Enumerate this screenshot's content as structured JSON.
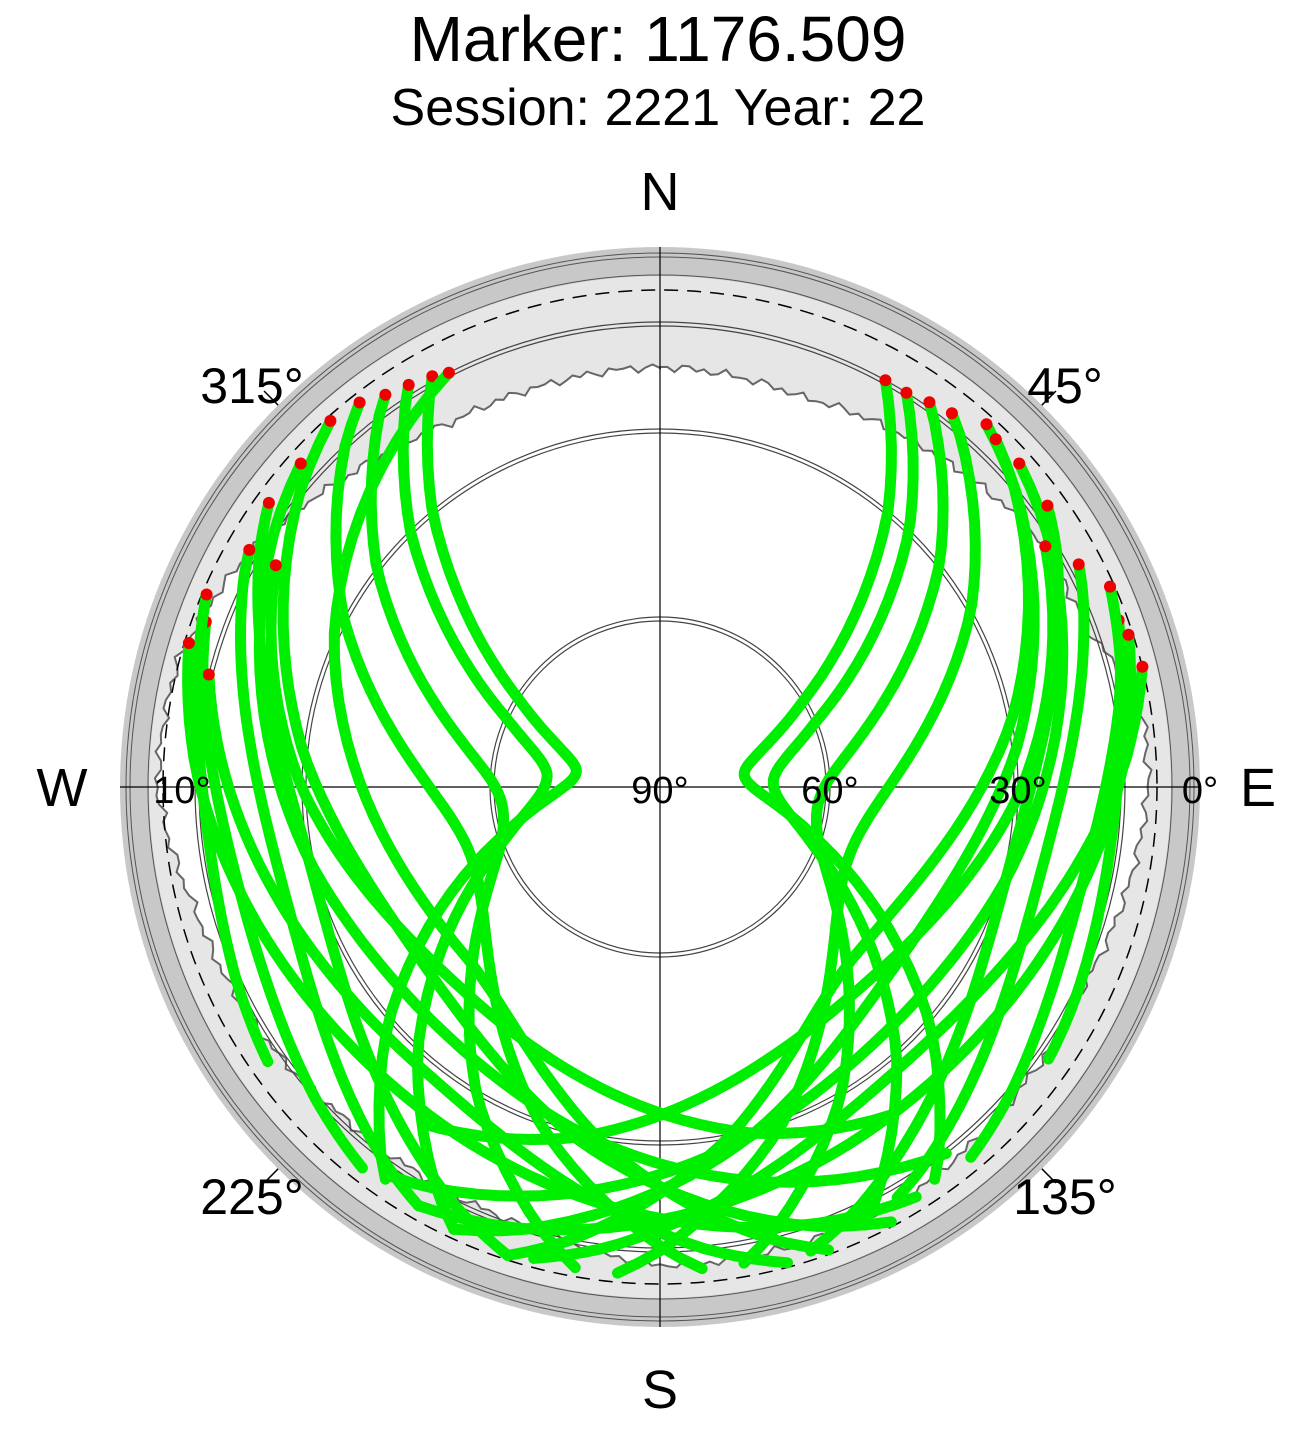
{
  "chart_data": {
    "type": "scatter",
    "projection": "polar-skyplot",
    "title": "Marker: 1176.509",
    "subtitle": "Session: 2221 Year: 22",
    "cardinals": {
      "n": "N",
      "e": "E",
      "s": "S",
      "w": "W"
    },
    "azimuth_tick_labels": [
      "45°",
      "135°",
      "225°",
      "315°"
    ],
    "elevation_tick_labels": [
      "0°",
      "10°",
      "30°",
      "60°",
      "90°"
    ],
    "elevation_rings_deg": [
      0,
      10,
      30,
      60
    ],
    "colors": {
      "track": "#00ee00",
      "track_start": "#ee0000",
      "outer_band": "#c8c8c8",
      "mask_area": "#e6e6e6",
      "background": "#ffffff"
    },
    "series": [
      {
        "color": "#00ee00",
        "tracks": [
          {
            "az_start": 318,
            "el_start": 4,
            "az_end": 152,
            "el_end": 4,
            "az_peak": 235,
            "el_peak": 40
          },
          {
            "az_start": 322,
            "el_start": 5,
            "az_end": 175,
            "el_end": 6,
            "az_peak": 250,
            "el_peak": 55
          },
          {
            "az_start": 325,
            "el_start": 7,
            "az_end": 190,
            "el_end": 5,
            "az_peak": 262,
            "el_peak": 62
          },
          {
            "az_start": 328,
            "el_start": 8,
            "az_end": 205,
            "el_end": 5,
            "az_peak": 275,
            "el_peak": 70
          },
          {
            "az_start": 331,
            "el_start": 9,
            "az_end": 215,
            "el_end": 7,
            "az_peak": 280,
            "el_peak": 75
          },
          {
            "az_start": 333,
            "el_start": 10,
            "az_end": 160,
            "el_end": 4,
            "az_peak": 230,
            "el_peak": 46
          },
          {
            "az_start": 312,
            "el_start": 6,
            "az_end": 142,
            "el_end": 10,
            "az_peak": 225,
            "el_peak": 35
          },
          {
            "az_start": 306,
            "el_start": 6,
            "az_end": 198,
            "el_end": 4,
            "az_peak": 255,
            "el_peak": 30
          },
          {
            "az_start": 300,
            "el_start": 8,
            "az_end": 210,
            "el_end": 6,
            "az_peak": 255,
            "el_peak": 24
          },
          {
            "az_start": 290,
            "el_start": 6,
            "az_end": 218,
            "el_end": 6,
            "az_peak": 255,
            "el_peak": 16
          },
          {
            "az_start": 284,
            "el_start": 10,
            "az_end": 165,
            "el_end": 4,
            "az_peak": 222,
            "el_peak": 28
          },
          {
            "az_start": 293,
            "el_start": 4,
            "az_end": 235,
            "el_end": 7,
            "az_peak": 262,
            "el_peak": 12
          },
          {
            "az_start": 300,
            "el_start": 14,
            "az_end": 145,
            "el_end": 22,
            "az_peak": 222,
            "el_peak": 42
          },
          {
            "az_start": 287,
            "el_start": 4,
            "az_end": 148,
            "el_end": 6,
            "az_peak": 220,
            "el_peak": 22
          },
          {
            "az_start": 42,
            "el_start": 5,
            "az_end": 205,
            "el_end": 5,
            "az_peak": 125,
            "el_peak": 40
          },
          {
            "az_start": 38,
            "el_start": 8,
            "az_end": 185,
            "el_end": 5,
            "az_peak": 110,
            "el_peak": 55
          },
          {
            "az_start": 35,
            "el_start": 9,
            "az_end": 170,
            "el_end": 6,
            "az_peak": 98,
            "el_peak": 62
          },
          {
            "az_start": 32,
            "el_start": 10,
            "az_end": 155,
            "el_end": 6,
            "az_peak": 88,
            "el_peak": 70
          },
          {
            "az_start": 29,
            "el_start": 10,
            "az_end": 145,
            "el_end": 7,
            "az_peak": 82,
            "el_peak": 75
          },
          {
            "az_start": 44,
            "el_start": 6,
            "az_end": 198,
            "el_end": 4,
            "az_peak": 130,
            "el_peak": 46
          },
          {
            "az_start": 48,
            "el_start": 6,
            "az_end": 215,
            "el_end": 8,
            "az_peak": 135,
            "el_peak": 34
          },
          {
            "az_start": 54,
            "el_start": 7,
            "az_end": 162,
            "el_end": 5,
            "az_peak": 105,
            "el_peak": 30
          },
          {
            "az_start": 62,
            "el_start": 8,
            "az_end": 150,
            "el_end": 8,
            "az_peak": 105,
            "el_peak": 24
          },
          {
            "az_start": 70,
            "el_start": 5,
            "az_end": 140,
            "el_end": 6,
            "az_peak": 105,
            "el_peak": 16
          },
          {
            "az_start": 76,
            "el_start": 3,
            "az_end": 195,
            "el_end": 5,
            "az_peak": 138,
            "el_peak": 28
          },
          {
            "az_start": 66,
            "el_start": 4,
            "az_end": 125,
            "el_end": 8,
            "az_peak": 98,
            "el_peak": 12
          },
          {
            "az_start": 58,
            "el_start": 12,
            "az_end": 215,
            "el_end": 20,
            "az_peak": 140,
            "el_peak": 42
          },
          {
            "az_start": 72,
            "el_start": 4,
            "az_end": 210,
            "el_end": 6,
            "az_peak": 140,
            "el_peak": 22
          }
        ]
      }
    ],
    "xlim": [
      0,
      360
    ],
    "ylim": [
      0,
      90
    ],
    "grid": true
  }
}
